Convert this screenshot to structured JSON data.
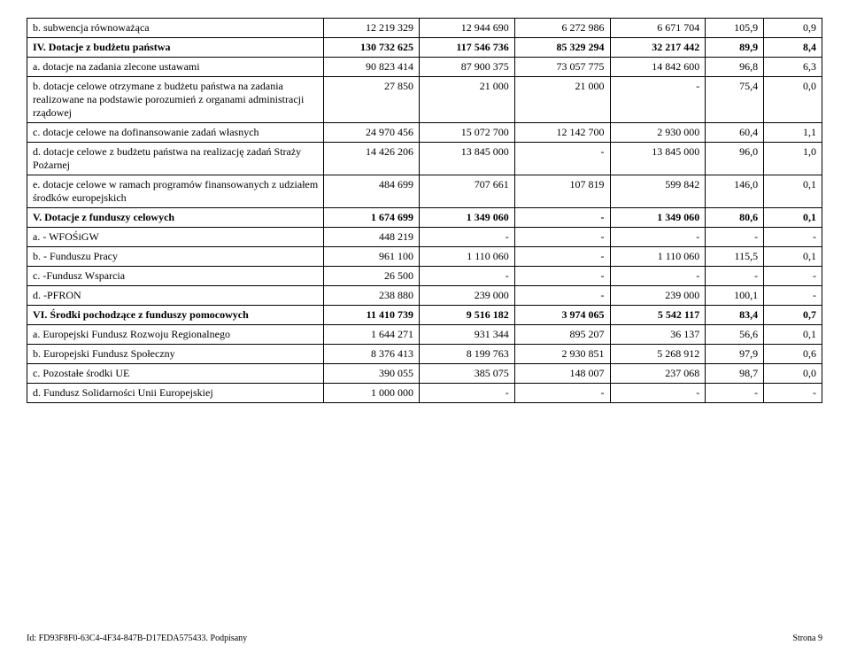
{
  "rows": [
    {
      "label": "b. subwencja równoważąca",
      "c1": "12 219 329",
      "c2": "12 944 690",
      "c3": "6 272 986",
      "c4": "6 671 704",
      "c5": "105,9",
      "c6": "0,9",
      "bold": false
    },
    {
      "label": "IV. Dotacje z budżetu państwa",
      "c1": "130 732 625",
      "c2": "117 546 736",
      "c3": "85 329 294",
      "c4": "32 217 442",
      "c5": "89,9",
      "c6": "8,4",
      "bold": true
    },
    {
      "label": "a. dotacje na zadania zlecone ustawami",
      "c1": "90 823 414",
      "c2": "87 900 375",
      "c3": "73 057 775",
      "c4": "14 842 600",
      "c5": "96,8",
      "c6": "6,3",
      "bold": false
    },
    {
      "label": "b. dotacje celowe otrzymane z budżetu państwa na zadania realizowane na podstawie porozumień z organami administracji rządowej",
      "c1": "27 850",
      "c2": "21 000",
      "c3": "21 000",
      "c4": "-",
      "c5": "75,4",
      "c6": "0,0",
      "bold": false
    },
    {
      "label": "c. dotacje celowe na dofinansowanie zadań własnych",
      "c1": "24 970 456",
      "c2": "15 072 700",
      "c3": "12 142 700",
      "c4": "2 930 000",
      "c5": "60,4",
      "c6": "1,1",
      "bold": false
    },
    {
      "label": "d. dotacje celowe z budżetu państwa na realizację zadań Straży Pożarnej",
      "c1": "14 426 206",
      "c2": "13 845 000",
      "c3": "-",
      "c4": "13 845 000",
      "c5": "96,0",
      "c6": "1,0",
      "bold": false
    },
    {
      "label": "e. dotacje celowe w ramach programów finansowanych z udziałem środków europejskich",
      "c1": "484 699",
      "c2": "707 661",
      "c3": "107 819",
      "c4": "599 842",
      "c5": "146,0",
      "c6": "0,1",
      "bold": false
    },
    {
      "label": "V. Dotacje z funduszy celowych",
      "c1": "1 674 699",
      "c2": "1 349 060",
      "c3": "-",
      "c4": "1 349 060",
      "c5": "80,6",
      "c6": "0,1",
      "bold": true
    },
    {
      "label": "a. - WFOŚiGW",
      "c1": "448 219",
      "c2": "-",
      "c3": "-",
      "c4": "-",
      "c5": "-",
      "c6": "-",
      "bold": false
    },
    {
      "label": "b. - Funduszu Pracy",
      "c1": "961 100",
      "c2": "1 110 060",
      "c3": "-",
      "c4": "1 110 060",
      "c5": "115,5",
      "c6": "0,1",
      "bold": false
    },
    {
      "label": "c. -Fundusz Wsparcia",
      "c1": "26 500",
      "c2": "-",
      "c3": "-",
      "c4": "-",
      "c5": "-",
      "c6": "-",
      "bold": false
    },
    {
      "label": "d. -PFRON",
      "c1": "238 880",
      "c2": "239 000",
      "c3": "-",
      "c4": "239 000",
      "c5": "100,1",
      "c6": "-",
      "bold": false
    },
    {
      "label": "VI. Środki pochodzące z funduszy pomocowych",
      "c1": "11 410 739",
      "c2": "9 516 182",
      "c3": "3 974 065",
      "c4": "5 542 117",
      "c5": "83,4",
      "c6": "0,7",
      "bold": true
    },
    {
      "label": "a. Europejski Fundusz Rozwoju Regionalnego",
      "c1": "1 644 271",
      "c2": "931 344",
      "c3": "895 207",
      "c4": "36 137",
      "c5": "56,6",
      "c6": "0,1",
      "bold": false
    },
    {
      "label": "b. Europejski Fundusz Społeczny",
      "c1": "8 376 413",
      "c2": "8 199 763",
      "c3": "2 930 851",
      "c4": "5 268 912",
      "c5": "97,9",
      "c6": "0,6",
      "bold": false
    },
    {
      "label": "c. Pozostałe środki UE",
      "c1": "390 055",
      "c2": "385 075",
      "c3": "148 007",
      "c4": "237 068",
      "c5": "98,7",
      "c6": "0,0",
      "bold": false
    },
    {
      "label": "d. Fundusz Solidarności Unii Europejskiej",
      "c1": "1 000 000",
      "c2": "-",
      "c3": "-",
      "c4": "-",
      "c5": "-",
      "c6": "-",
      "bold": false
    }
  ],
  "footer": {
    "left": "Id: FD93F8F0-63C4-4F34-847B-D17EDA575433. Podpisany",
    "right": "Strona 9"
  }
}
